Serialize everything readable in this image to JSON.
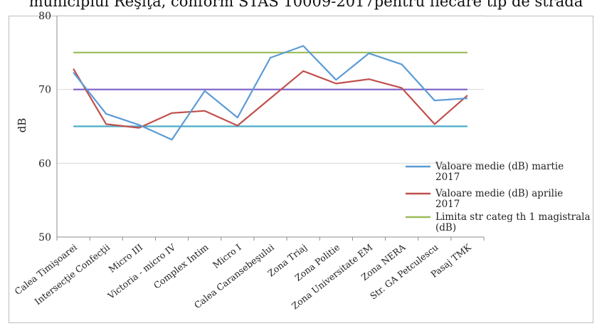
{
  "header": {
    "caption_fragment": "municipiul Reşiţa, conform STAS 10009-2017pentru fiecare tip de stradă"
  },
  "chart_data": {
    "type": "line",
    "title": "",
    "xlabel": "",
    "ylabel": "dB",
    "ylim": [
      50,
      80
    ],
    "yticks": [
      50,
      60,
      70,
      80
    ],
    "grid": true,
    "legend_position": "right",
    "categories": [
      "Calea Timişoarei",
      "Intersecţie Confecţii",
      "Micro III",
      "Victoria - micro IV",
      "Complex Intim",
      "Micro I",
      "Calea Caransebeşului",
      "Zona Triaj",
      "Zona Politie",
      "Zona Universitate EM",
      "Zona NERA",
      "Str. GA Petculescu",
      "Pasaj TMK"
    ],
    "series": [
      {
        "name": "Valoare medie (dB) martie 2017",
        "color": "#5b9bd5",
        "in_legend": true,
        "values": [
          72.3,
          66.7,
          65.2,
          63.2,
          69.8,
          66.2,
          74.3,
          75.9,
          71.3,
          74.9,
          73.4,
          68.5,
          68.8
        ]
      },
      {
        "name": "Valoare medie (dB) aprilie 2017",
        "color": "#c0504d",
        "in_legend": true,
        "values": [
          72.8,
          65.3,
          64.8,
          66.8,
          67.1,
          65.1,
          68.8,
          72.5,
          70.8,
          71.4,
          70.2,
          65.3,
          69.2
        ]
      },
      {
        "name": "Limita str categ th 1 magistrala (dB)",
        "color": "#9bbb59",
        "in_legend": true,
        "values": [
          75,
          75,
          75,
          75,
          75,
          75,
          75,
          75,
          75,
          75,
          75,
          75,
          75
        ]
      },
      {
        "name": "",
        "color": "#7b5fc7",
        "in_legend": false,
        "values": [
          70,
          70,
          70,
          70,
          70,
          70,
          70,
          70,
          70,
          70,
          70,
          70,
          70
        ]
      },
      {
        "name": "",
        "color": "#4bacc6",
        "in_legend": false,
        "values": [
          65,
          65,
          65,
          65,
          65,
          65,
          65,
          65,
          65,
          65,
          65,
          65,
          65
        ]
      }
    ]
  }
}
